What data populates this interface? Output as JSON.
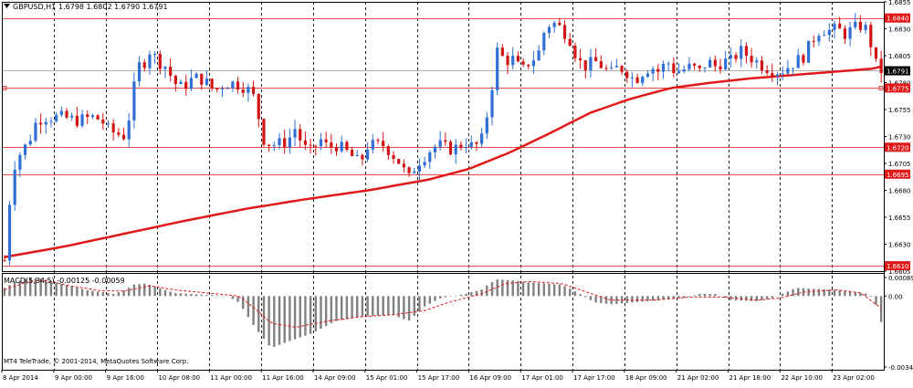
{
  "chart_data": [
    {
      "type": "candlestick",
      "symbol_label": "GBPUSD,H1",
      "ohlc_label": "1.6798 1.6802 1.6790 1.6791",
      "ylim": [
        1.6605,
        1.6855
      ],
      "y_ticks": [
        "1.6855",
        "1.6830",
        "1.6805",
        "1.6780",
        "1.6755",
        "1.6730",
        "1.6705",
        "1.6680",
        "1.6655",
        "1.6630",
        "1.6605"
      ],
      "level_lines": [
        {
          "value": 1.684,
          "label": "1.6840"
        },
        {
          "value": 1.6775,
          "label": "1.6775"
        },
        {
          "value": 1.672,
          "label": "1.6720"
        },
        {
          "value": 1.6695,
          "label": "1.6695"
        },
        {
          "value": 1.661,
          "label": "1.6610"
        }
      ],
      "current_price": {
        "value": 1.6791,
        "label": "1.6791"
      },
      "x_tick_labels": [
        "8 Apr 2014",
        "9 Apr 00:00",
        "9 Apr 16:00",
        "10 Apr 08:00",
        "11 Apr 00:00",
        "11 Apr 16:00",
        "14 Apr 09:00",
        "15 Apr 01:00",
        "15 Apr 17:00",
        "16 Apr 09:00",
        "17 Apr 01:00",
        "17 Apr 17:00",
        "18 Apr 09:00",
        "21 Apr 02:00",
        "21 Apr 18:00",
        "22 Apr 10:00",
        "23 Apr 02:00"
      ],
      "bar_count": 170,
      "close_path": [
        [
          0,
          1.6615
        ],
        [
          2,
          1.67
        ],
        [
          4,
          1.6715
        ],
        [
          6,
          1.6725
        ],
        [
          8,
          1.6745
        ],
        [
          10,
          1.6748
        ],
        [
          14,
          1.6748
        ],
        [
          18,
          1.6745
        ],
        [
          22,
          1.6748
        ],
        [
          24,
          1.6745
        ],
        [
          26,
          1.6735
        ],
        [
          30,
          1.673
        ],
        [
          33,
          1.6795
        ],
        [
          35,
          1.68
        ],
        [
          36,
          1.681
        ],
        [
          38,
          1.68
        ],
        [
          40,
          1.6795
        ],
        [
          42,
          1.678
        ],
        [
          44,
          1.6775
        ],
        [
          46,
          1.6782
        ],
        [
          48,
          1.6785
        ],
        [
          50,
          1.678
        ],
        [
          52,
          1.6772
        ],
        [
          54,
          1.6778
        ],
        [
          56,
          1.678
        ],
        [
          58,
          1.6778
        ],
        [
          60,
          1.6775
        ],
        [
          62,
          1.6765
        ],
        [
          64,
          1.6728
        ],
        [
          66,
          1.6722
        ],
        [
          70,
          1.6725
        ],
        [
          72,
          1.6738
        ],
        [
          74,
          1.672
        ],
        [
          76,
          1.6715
        ],
        [
          78,
          1.6728
        ],
        [
          80,
          1.672
        ],
        [
          82,
          1.6722
        ],
        [
          84,
          1.6718
        ],
        [
          88,
          1.6705
        ],
        [
          90,
          1.6722
        ],
        [
          94,
          1.6722
        ],
        [
          98,
          1.6705
        ],
        [
          100,
          1.669
        ],
        [
          102,
          1.6705
        ],
        [
          104,
          1.6712
        ],
        [
          106,
          1.672
        ],
        [
          108,
          1.6722
        ],
        [
          110,
          1.6718
        ],
        [
          112,
          1.672
        ],
        [
          114,
          1.6725
        ],
        [
          116,
          1.672
        ],
        [
          118,
          1.6725
        ],
        [
          120,
          1.676
        ],
        [
          122,
          1.681
        ],
        [
          124,
          1.68
        ],
        [
          126,
          1.6802
        ],
        [
          128,
          1.679
        ],
        [
          130,
          1.68
        ],
        [
          132,
          1.6805
        ],
        [
          134,
          1.6833
        ],
        [
          136,
          1.6835
        ],
        [
          138,
          1.683
        ],
        [
          140,
          1.682
        ],
        [
          142,
          1.68
        ],
        [
          144,
          1.6795
        ],
        [
          146,
          1.68
        ],
        [
          148,
          1.6795
        ],
        [
          150,
          1.6788
        ],
        [
          152,
          1.6795
        ],
        [
          154,
          1.679
        ],
        [
          156,
          1.6782
        ],
        [
          158,
          1.679
        ],
        [
          160,
          1.6795
        ],
        [
          162,
          1.679
        ],
        [
          164,
          1.68
        ],
        [
          166,
          1.679
        ],
        [
          168,
          1.6792
        ],
        [
          170,
          1.6795
        ],
        [
          172,
          1.679
        ],
        [
          174,
          1.68
        ],
        [
          176,
          1.6795
        ],
        [
          178,
          1.68
        ],
        [
          180,
          1.68
        ],
        [
          182,
          1.681
        ],
        [
          184,
          1.6805
        ],
        [
          186,
          1.68
        ],
        [
          188,
          1.6795
        ],
        [
          190,
          1.6792
        ],
        [
          192,
          1.679
        ],
        [
          194,
          1.6795
        ],
        [
          196,
          1.68
        ],
        [
          198,
          1.6805
        ],
        [
          200,
          1.682
        ],
        [
          202,
          1.683
        ],
        [
          204,
          1.6828
        ],
        [
          206,
          1.683
        ],
        [
          208,
          1.6825
        ],
        [
          210,
          1.683
        ],
        [
          212,
          1.6833
        ],
        [
          214,
          1.6828
        ],
        [
          215,
          1.68
        ],
        [
          217,
          1.6791
        ]
      ],
      "moving_average": [
        [
          0,
          1.6618
        ],
        [
          15,
          1.6628
        ],
        [
          30,
          1.664
        ],
        [
          45,
          1.6652
        ],
        [
          60,
          1.6663
        ],
        [
          75,
          1.6672
        ],
        [
          90,
          1.668
        ],
        [
          105,
          1.669
        ],
        [
          115,
          1.67
        ],
        [
          125,
          1.6715
        ],
        [
          135,
          1.6733
        ],
        [
          145,
          1.6752
        ],
        [
          155,
          1.6765
        ],
        [
          165,
          1.6775
        ],
        [
          175,
          1.678
        ],
        [
          185,
          1.6784
        ],
        [
          195,
          1.6787
        ],
        [
          205,
          1.679
        ],
        [
          215,
          1.6793
        ],
        [
          217,
          1.6795
        ]
      ],
      "indicator": {
        "label": "MACD(5,34,5) -0.00125 -0.00059",
        "ylim": [
          -0.00341,
          0.00089
        ],
        "y_ticks": [
          "0.00089",
          "0.00",
          "-0.00341"
        ],
        "histogram_path": [
          [
            0,
            0.0004
          ],
          [
            3,
            0.0007
          ],
          [
            6,
            0.00088
          ],
          [
            9,
            0.00085
          ],
          [
            12,
            0.0007
          ],
          [
            16,
            0.0005
          ],
          [
            20,
            0.0003
          ],
          [
            24,
            0.0002
          ],
          [
            27,
            0.0001
          ],
          [
            30,
            0.0003
          ],
          [
            32,
            0.00055
          ],
          [
            35,
            0.0006
          ],
          [
            38,
            0.0004
          ],
          [
            42,
            0.00015
          ],
          [
            46,
            0.0001
          ],
          [
            50,
            5e-05
          ],
          [
            55,
            2e-05
          ],
          [
            58,
            -0.0003
          ],
          [
            62,
            -0.0015
          ],
          [
            66,
            -0.0025
          ],
          [
            70,
            -0.0022
          ],
          [
            76,
            -0.0018
          ],
          [
            82,
            -0.0012
          ],
          [
            88,
            -0.001
          ],
          [
            96,
            -0.0009
          ],
          [
            100,
            -0.0012
          ],
          [
            104,
            -0.0005
          ],
          [
            108,
            -0.0001
          ],
          [
            114,
            0.0001
          ],
          [
            118,
            0.0003
          ],
          [
            120,
            0.0006
          ],
          [
            122,
            0.0008
          ],
          [
            126,
            0.00075
          ],
          [
            130,
            0.00065
          ],
          [
            134,
            0.0006
          ],
          [
            138,
            0.00055
          ],
          [
            142,
            0.00015
          ],
          [
            146,
            -0.0003
          ],
          [
            150,
            -0.0004
          ],
          [
            156,
            -0.0003
          ],
          [
            162,
            -0.0002
          ],
          [
            168,
            -0.0001
          ],
          [
            172,
            0.0001
          ],
          [
            176,
            0.0001
          ],
          [
            180,
            -0.0002
          ],
          [
            186,
            -0.00025
          ],
          [
            190,
            -0.0001
          ],
          [
            196,
            0.0004
          ],
          [
            200,
            0.00035
          ],
          [
            206,
            0.0003
          ],
          [
            210,
            0.0002
          ],
          [
            214,
            0.0001
          ],
          [
            216,
            -0.0005
          ],
          [
            217,
            -0.00125
          ]
        ],
        "signal_path": [
          [
            0,
            0.0003
          ],
          [
            6,
            0.0007
          ],
          [
            10,
            0.00075
          ],
          [
            16,
            0.0005
          ],
          [
            24,
            0.00025
          ],
          [
            30,
            0.00025
          ],
          [
            36,
            0.0005
          ],
          [
            42,
            0.0003
          ],
          [
            50,
            0.00015
          ],
          [
            58,
            0.0
          ],
          [
            62,
            -0.0006
          ],
          [
            66,
            -0.0013
          ],
          [
            72,
            -0.0015
          ],
          [
            80,
            -0.0012
          ],
          [
            88,
            -0.001
          ],
          [
            96,
            -0.0009
          ],
          [
            104,
            -0.0007
          ],
          [
            110,
            -0.0003
          ],
          [
            118,
            0.0001
          ],
          [
            124,
            0.0006
          ],
          [
            130,
            0.0007
          ],
          [
            138,
            0.0006
          ],
          [
            144,
            0.0002
          ],
          [
            150,
            -0.0002
          ],
          [
            160,
            -0.0002
          ],
          [
            170,
            -5e-05
          ],
          [
            178,
            -5e-05
          ],
          [
            186,
            -0.0002
          ],
          [
            192,
            -0.0001
          ],
          [
            198,
            0.0002
          ],
          [
            206,
            0.0003
          ],
          [
            212,
            0.00015
          ],
          [
            217,
            -0.00059
          ]
        ]
      },
      "footer_text": "MT4 TeleTrade, © 2001-2014, MetaQuotes Software Corp.",
      "colors": {
        "background": "#ffffff",
        "bull": "#2f6fd6",
        "bear": "#d21414",
        "level_line": "#e34a4a",
        "level_label_bg": "#e01818",
        "moving_average": "#e01818",
        "grid": "#000000",
        "histogram": "#808080",
        "signal": "#e01818",
        "current_price_bg": "#000000"
      },
      "grid": true
    }
  ]
}
